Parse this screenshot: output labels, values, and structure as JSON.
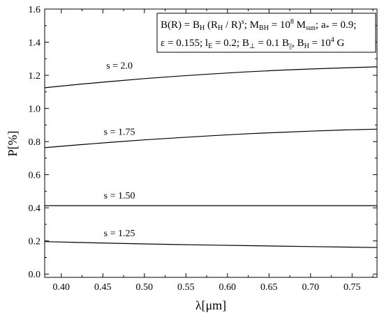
{
  "chart_data": {
    "type": "line",
    "xlabel": "λ[μm]",
    "ylabel": "P[%]",
    "xlim": [
      0.38,
      0.78
    ],
    "ylim": [
      -0.02,
      1.6
    ],
    "x_ticks": [
      "0.40",
      "0.45",
      "0.50",
      "0.55",
      "0.60",
      "0.65",
      "0.70",
      "0.75"
    ],
    "x_tick_values": [
      0.4,
      0.45,
      0.5,
      0.55,
      0.6,
      0.65,
      0.7,
      0.75
    ],
    "y_ticks": [
      "0.0",
      "0.2",
      "0.4",
      "0.6",
      "0.8",
      "1.0",
      "1.2",
      "1.4",
      "1.6"
    ],
    "y_tick_values": [
      0.0,
      0.2,
      0.4,
      0.6,
      0.8,
      1.0,
      1.2,
      1.4,
      1.6
    ],
    "grid": false,
    "legend_position": "top-right",
    "series": [
      {
        "name": "s = 2.0",
        "label_at": [
          0.47,
          1.24
        ],
        "x": [
          0.38,
          0.42,
          0.46,
          0.5,
          0.54,
          0.58,
          0.62,
          0.66,
          0.7,
          0.74,
          0.78
        ],
        "y": [
          1.125,
          1.145,
          1.163,
          1.18,
          1.195,
          1.208,
          1.22,
          1.23,
          1.238,
          1.245,
          1.251
        ]
      },
      {
        "name": "s = 1.75",
        "label_at": [
          0.47,
          0.84
        ],
        "x": [
          0.38,
          0.42,
          0.46,
          0.5,
          0.54,
          0.58,
          0.62,
          0.66,
          0.7,
          0.74,
          0.78
        ],
        "y": [
          0.763,
          0.78,
          0.796,
          0.81,
          0.823,
          0.835,
          0.846,
          0.855,
          0.863,
          0.87,
          0.875
        ]
      },
      {
        "name": "s = 1.50",
        "label_at": [
          0.47,
          0.455
        ],
        "x": [
          0.38,
          0.78
        ],
        "y": [
          0.413,
          0.413
        ]
      },
      {
        "name": "s = 1.25",
        "label_at": [
          0.47,
          0.228
        ],
        "x": [
          0.38,
          0.42,
          0.46,
          0.5,
          0.54,
          0.58,
          0.62,
          0.66,
          0.7,
          0.74,
          0.78
        ],
        "y": [
          0.196,
          0.191,
          0.186,
          0.182,
          0.178,
          0.175,
          0.172,
          0.169,
          0.166,
          0.163,
          0.16
        ]
      }
    ],
    "legend": {
      "line1": {
        "t1": "B(R) = B",
        "s1": "H",
        "t2": " (R",
        "s2": "H",
        "t3": " / R)",
        "p1": "s",
        "t4": "; M",
        "s3": "BH",
        "t5": " = 10",
        "p2": "8",
        "t6": " M",
        "s4": "sun",
        "t7": "; a",
        "s5": "*",
        "t8": " = 0.9;"
      },
      "line2": {
        "t1": "ε = 0.155; l",
        "s1": "E",
        "t2": " = 0.2; B",
        "s2": "⊥",
        "t3": " = 0.1 B",
        "s3": "||",
        "t4": ", B",
        "s4": "H",
        "t5": " = 10",
        "p1": "4",
        "t6": " G"
      }
    }
  }
}
